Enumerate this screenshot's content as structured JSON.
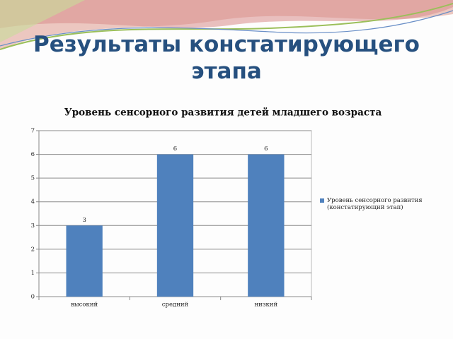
{
  "slide_title": "Результаты констатирующего этапа",
  "chart_data": {
    "type": "bar",
    "title": "Уровень сенсорного развития детей младшего возраста",
    "categories": [
      "высокий",
      "средний",
      "низкий"
    ],
    "series": [
      {
        "name": "Уровень сенсорного развития (констатирующий этап)",
        "color": "#4f81bd",
        "values": [
          3,
          6,
          6
        ]
      }
    ],
    "ylim": [
      0,
      7
    ],
    "yticks": [
      0,
      1,
      2,
      3,
      4,
      5,
      6,
      7
    ],
    "grid": true,
    "legend": "right"
  }
}
